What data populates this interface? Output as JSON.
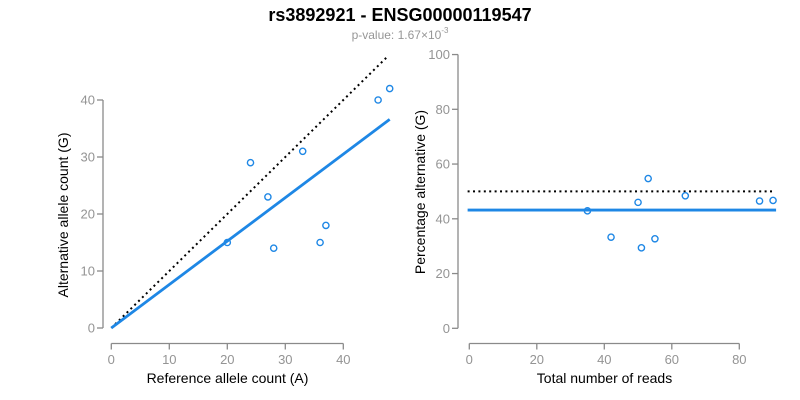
{
  "header": {
    "title": "rs3892921 - ENSG00000119547",
    "subtitle_prefix": "p-value: 1.67×10",
    "subtitle_exponent": "-3"
  },
  "colors": {
    "accent_blue": "#1E87E5",
    "line_black": "#000000",
    "axis_gray": "#8A8A8A",
    "tick_label_gray": "#949494",
    "subtitle_gray": "#969696"
  },
  "chart_data": [
    {
      "type": "scatter",
      "name": "allele-counts",
      "title": "rs3892921 - ENSG00000119547",
      "subtitle": "p-value: 1.67×10^-3",
      "xlabel": "Reference allele count (A)",
      "ylabel": "Alternative allele count (G)",
      "xticks": [
        0,
        10,
        20,
        30,
        40
      ],
      "yticks": [
        0,
        10,
        20,
        30,
        40
      ],
      "xlim": [
        0,
        48
      ],
      "ylim": [
        0,
        48
      ],
      "grid": false,
      "legend": "none",
      "points": [
        [
          20,
          15
        ],
        [
          24,
          29
        ],
        [
          27,
          23
        ],
        [
          28,
          14
        ],
        [
          33,
          31
        ],
        [
          36,
          15
        ],
        [
          37,
          18
        ],
        [
          46,
          40
        ],
        [
          48,
          42
        ]
      ],
      "lines": [
        {
          "name": "identity-line",
          "style": "dotted",
          "color": "#000000",
          "from": [
            0,
            0
          ],
          "to": [
            47.8,
            47.8
          ]
        },
        {
          "name": "fit-line",
          "style": "solid",
          "color": "#1E87E5",
          "from": [
            0,
            0
          ],
          "to": [
            48,
            36.6
          ]
        }
      ]
    },
    {
      "type": "scatter",
      "name": "percentage-vs-reads",
      "xlabel": "Total number of reads",
      "ylabel": "Percentage alternative (G)",
      "xticks": [
        0,
        20,
        40,
        60,
        80
      ],
      "yticks": [
        0,
        20,
        40,
        60,
        80,
        100
      ],
      "xlim": [
        0,
        91
      ],
      "ylim": [
        0,
        100
      ],
      "grid": false,
      "legend": "none",
      "points": [
        [
          35,
          42.9
        ],
        [
          42,
          33.3
        ],
        [
          50,
          46.0
        ],
        [
          51,
          29.4
        ],
        [
          53,
          54.7
        ],
        [
          55,
          32.7
        ],
        [
          64,
          48.4
        ],
        [
          86,
          46.5
        ],
        [
          90,
          46.7
        ]
      ],
      "lines": [
        {
          "name": "expected-percentage-line",
          "style": "dotted",
          "color": "#000000",
          "from": [
            -0.5,
            50
          ],
          "to": [
            90.7,
            50
          ]
        },
        {
          "name": "mean-percentage-line",
          "style": "solid",
          "color": "#1E87E5",
          "from": [
            -0.5,
            43.2
          ],
          "to": [
            90.9,
            43.2
          ]
        }
      ]
    }
  ]
}
